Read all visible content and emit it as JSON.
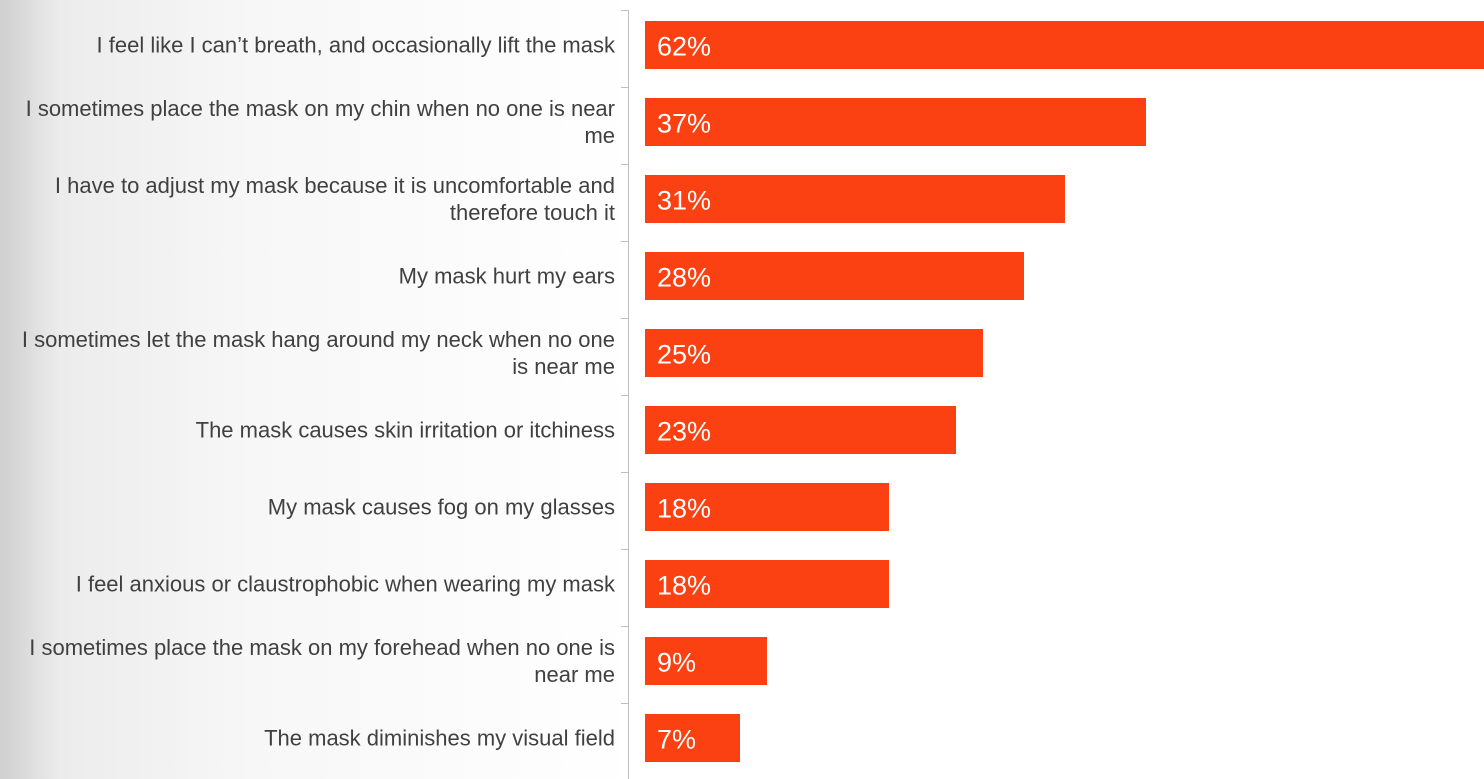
{
  "chart_data": {
    "type": "bar",
    "orientation": "horizontal",
    "color": "#fb4011",
    "categories": [
      "I feel like I can’t breath, and occasionally lift the mask",
      "I sometimes place the mask on my chin when no one is near me",
      "I have to adjust my mask because it is uncomfortable and therefore touch it",
      "My mask hurt my ears",
      "I sometimes let the mask hang around my neck when no one is near me",
      "The mask causes skin irritation or itchiness",
      "My mask causes fog on my glasses",
      "I feel anxious or claustrophobic when wearing my mask",
      "I sometimes place the mask on my forehead when no one is near me",
      "The mask diminishes my visual field"
    ],
    "values": [
      62,
      37,
      31,
      28,
      25,
      23,
      18,
      18,
      9,
      7
    ],
    "value_labels": [
      "62%",
      "37%",
      "31%",
      "28%",
      "25%",
      "23%",
      "18%",
      "18%",
      "9%",
      "7%"
    ]
  }
}
